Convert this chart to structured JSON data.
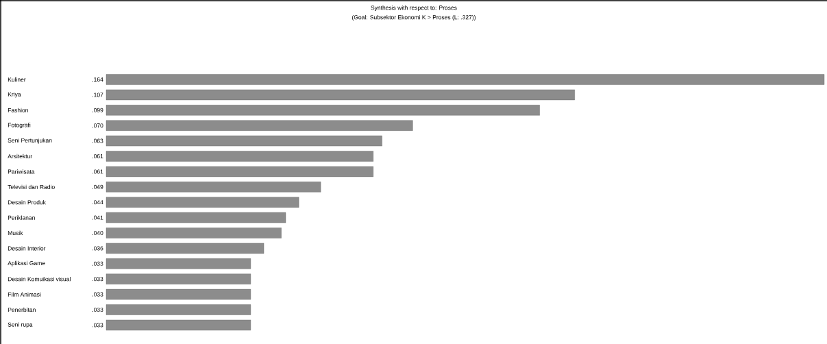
{
  "chart_data": {
    "type": "bar",
    "orientation": "horizontal",
    "title": "Synthesis with respect to: Proses",
    "subtitle": "(Goal: Subsektor Ekonomi K > Proses (L: .327))",
    "categories": [
      "Kuliner",
      "Kriya",
      "Fashion",
      "Fotografi",
      "Seni Pertunjukan",
      "Arsitektur",
      "Pariwisata",
      "Televisi dan Radio",
      "Desain Produk",
      "Periklanan",
      "Musik",
      "Desain Interior",
      "Aplikasi Game",
      "Desain Komuikasi visual",
      "Film Animasi",
      "Penerbitan",
      "Seni rupa"
    ],
    "values": [
      0.164,
      0.107,
      0.099,
      0.07,
      0.063,
      0.061,
      0.061,
      0.049,
      0.044,
      0.041,
      0.04,
      0.036,
      0.033,
      0.033,
      0.033,
      0.033,
      0.033
    ],
    "value_labels": [
      ".164",
      ".107",
      ".099",
      ".070",
      ".063",
      ".061",
      ".061",
      ".049",
      ".044",
      ".041",
      ".040",
      ".036",
      ".033",
      ".033",
      ".033",
      ".033",
      ".033"
    ],
    "color": "#8c8c8c"
  }
}
